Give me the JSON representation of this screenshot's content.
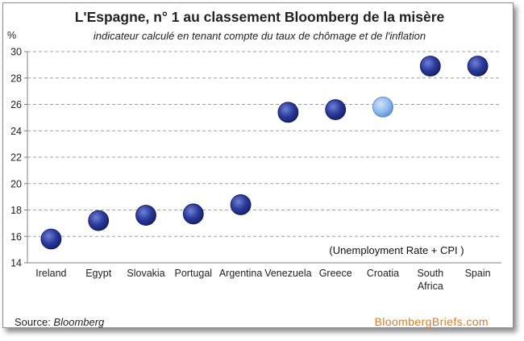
{
  "title": "L'Espagne, n° 1 au classement Bloomberg de la misère",
  "subtitle": "indicateur calculé en tenant compte du taux de chômage et de l'inflation",
  "source_label": "Source: ",
  "source_name": "Bloomberg",
  "brand": "BloombergBriefs.com",
  "colors": {
    "point": "#2a3a9a",
    "highlight": "#8fb8ea",
    "grid": "#a0a0a0",
    "brand": "#e07a1a"
  },
  "chart_data": {
    "type": "scatter",
    "title": "L'Espagne, n° 1 au classement Bloomberg de la misère",
    "subtitle": "indicateur calculé en tenant compte du taux de chômage et de l'inflation",
    "ylabel": "%",
    "annotation": "(Unemployment Rate + CPI )",
    "ylim": [
      14,
      30
    ],
    "yticks": [
      14,
      16,
      18,
      20,
      22,
      24,
      26,
      28,
      30
    ],
    "grid": true,
    "categories": [
      "Ireland",
      "Egypt",
      "Slovakia",
      "Portugal",
      "Argentina",
      "Venezuela",
      "Greece",
      "Croatia",
      "South Africa",
      "Spain"
    ],
    "values": [
      15.8,
      17.2,
      17.6,
      17.7,
      18.4,
      25.4,
      25.6,
      25.8,
      28.9,
      28.9
    ],
    "highlight": "Croatia"
  }
}
